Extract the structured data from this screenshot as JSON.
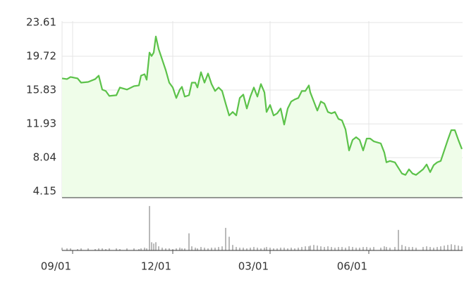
{
  "chart_data": {
    "type": "line",
    "color": "#5cc24a",
    "area_color": "#effde9",
    "volume_color": "#8a8a8a",
    "grid": true,
    "ylim": [
      3.43,
      23.77
    ],
    "yticks": [
      23.61,
      19.72,
      15.83,
      11.93,
      8.04,
      4.15
    ],
    "xlim": [
      0,
      568
    ],
    "xticks": [
      {
        "value": 15,
        "label": "09/01"
      },
      {
        "value": 157,
        "label": "12/01"
      },
      {
        "value": 295,
        "label": "03/01"
      },
      {
        "value": 435,
        "label": "06/01"
      }
    ],
    "x": [
      0,
      7,
      12,
      22,
      27,
      37,
      47,
      52,
      57,
      62,
      67,
      77,
      82,
      92,
      102,
      109,
      112,
      117,
      120,
      124,
      127,
      130,
      133,
      137,
      142,
      147,
      152,
      157,
      162,
      167,
      170,
      174,
      180,
      184,
      189,
      192,
      197,
      202,
      207,
      212,
      217,
      222,
      227,
      232,
      237,
      242,
      247,
      252,
      257,
      262,
      267,
      272,
      277,
      282,
      287,
      290,
      295,
      300,
      305,
      310,
      315,
      320,
      325,
      330,
      335,
      340,
      345,
      350,
      352,
      357,
      362,
      367,
      372,
      377,
      382,
      387,
      392,
      397,
      402,
      407,
      412,
      417,
      422,
      427,
      432,
      437,
      442,
      452,
      457,
      460,
      465,
      472,
      477,
      482,
      487,
      492,
      497,
      502,
      512,
      517,
      522,
      527,
      532,
      537,
      542,
      547,
      552,
      557,
      562,
      567
    ],
    "values": [
      17.17,
      17.09,
      17.33,
      17.17,
      16.68,
      16.76,
      17.09,
      17.49,
      15.88,
      15.72,
      15.15,
      15.23,
      16.12,
      15.88,
      16.28,
      16.36,
      17.49,
      17.65,
      17.01,
      20.15,
      19.74,
      20.15,
      22.0,
      20.55,
      19.34,
      18.13,
      16.68,
      16.12,
      14.91,
      15.88,
      16.2,
      15.07,
      15.23,
      16.68,
      16.68,
      16.12,
      17.89,
      16.68,
      17.73,
      16.52,
      15.72,
      16.12,
      15.72,
      14.27,
      12.9,
      13.3,
      12.9,
      14.91,
      15.31,
      13.7,
      15.07,
      16.12,
      15.07,
      16.52,
      15.56,
      13.3,
      14.11,
      12.9,
      13.14,
      13.7,
      11.85,
      13.7,
      14.51,
      14.75,
      14.91,
      15.72,
      15.72,
      16.36,
      15.56,
      14.51,
      13.46,
      14.51,
      14.27,
      13.3,
      13.14,
      13.3,
      12.5,
      12.33,
      11.29,
      8.87,
      10.08,
      10.4,
      10.08,
      8.87,
      10.24,
      10.24,
      9.92,
      9.68,
      8.63,
      7.5,
      7.66,
      7.5,
      6.86,
      6.21,
      6.05,
      6.7,
      6.21,
      6.05,
      6.7,
      7.26,
      6.37,
      7.18,
      7.5,
      7.66,
      8.87,
      10.08,
      11.21,
      11.21,
      10.08,
      9.03
    ],
    "vlim": [
      0,
      70
    ],
    "volume": [
      4,
      3,
      3,
      2,
      3,
      3,
      2,
      3,
      3,
      2,
      3,
      3,
      2,
      3,
      3,
      2,
      3,
      4,
      3,
      65,
      12,
      10,
      12,
      6,
      4,
      3,
      3,
      2,
      3,
      4,
      3,
      3,
      25,
      6,
      4,
      3,
      5,
      4,
      3,
      4,
      4,
      5,
      6,
      33,
      20,
      8,
      5,
      4,
      4,
      3,
      4,
      5,
      4,
      3,
      4,
      5,
      4,
      3,
      3,
      4,
      4,
      3,
      4,
      3,
      4,
      5,
      6,
      6,
      7,
      8,
      7,
      6,
      5,
      6,
      5,
      4,
      5,
      5,
      4,
      6,
      5,
      4,
      4,
      5,
      5,
      4,
      5,
      4,
      6,
      5,
      4,
      5,
      30,
      8,
      6,
      5,
      5,
      4,
      5,
      6,
      5,
      4,
      5,
      6,
      7,
      8,
      9,
      8,
      7,
      6
    ]
  }
}
